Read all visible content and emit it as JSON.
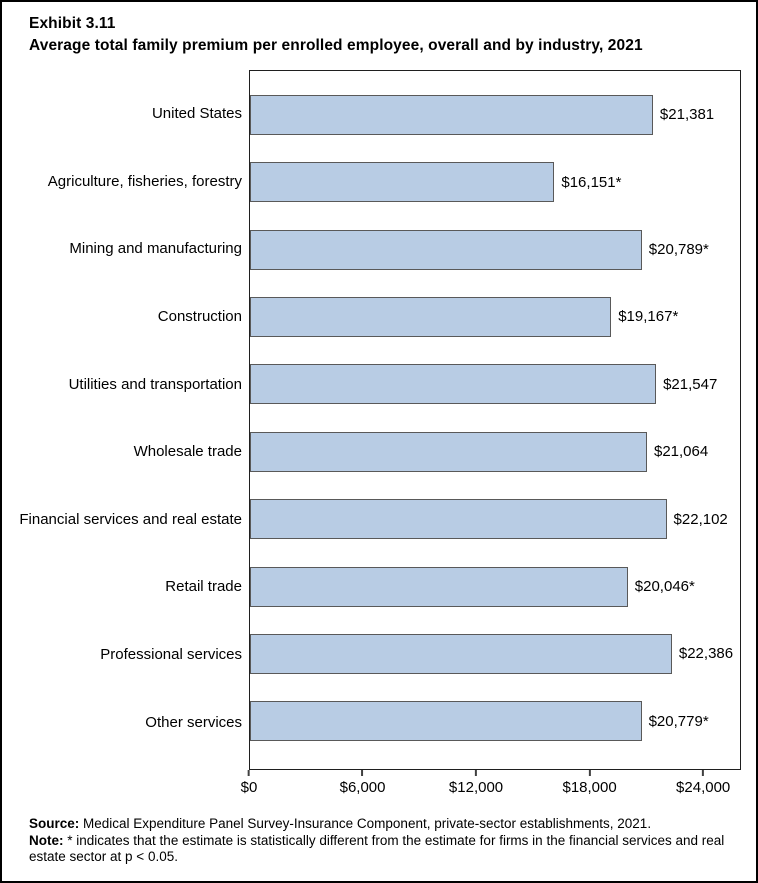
{
  "title": {
    "exhibit": "Exhibit 3.11",
    "line2": "Average total family premium per enrolled employee, overall and by industry, 2021"
  },
  "chart_data": {
    "type": "bar",
    "orientation": "horizontal",
    "title": "Average total family premium per enrolled employee, overall and by industry, 2021",
    "categories": [
      "United States",
      "Agriculture, fisheries, forestry",
      "Mining and manufacturing",
      "Construction",
      "Utilities and transportation",
      "Wholesale trade",
      "Financial services and real estate",
      "Retail trade",
      "Professional services",
      "Other services"
    ],
    "values": [
      21381,
      16151,
      20789,
      19167,
      21547,
      21064,
      22102,
      20046,
      22386,
      20779
    ],
    "value_labels": [
      "$21,381",
      "$16,151*",
      "$20,789*",
      "$19,167*",
      "$21,547",
      "$21,064",
      "$22,102",
      "$20,046*",
      "$22,386",
      "$20,779*"
    ],
    "xlabel": "",
    "ylabel": "",
    "xlim": [
      0,
      26000
    ],
    "x_ticks": [
      {
        "value": 0,
        "label": "$0"
      },
      {
        "value": 6000,
        "label": "$6,000"
      },
      {
        "value": 12000,
        "label": "$12,000"
      },
      {
        "value": 18000,
        "label": "$18,000"
      },
      {
        "value": 24000,
        "label": "$24,000"
      }
    ],
    "grid": false,
    "legend": false,
    "bar_color": "#b8cce4",
    "bar_border_color": "#595959"
  },
  "footer": {
    "source_label": "Source:",
    "source_text": " Medical Expenditure Panel Survey-Insurance Component, private-sector establishments, 2021.",
    "note_label": "Note:",
    "note_text": " * indicates that the estimate is statistically different from the estimate for firms in the financial services and real estate sector at p < 0.05."
  }
}
